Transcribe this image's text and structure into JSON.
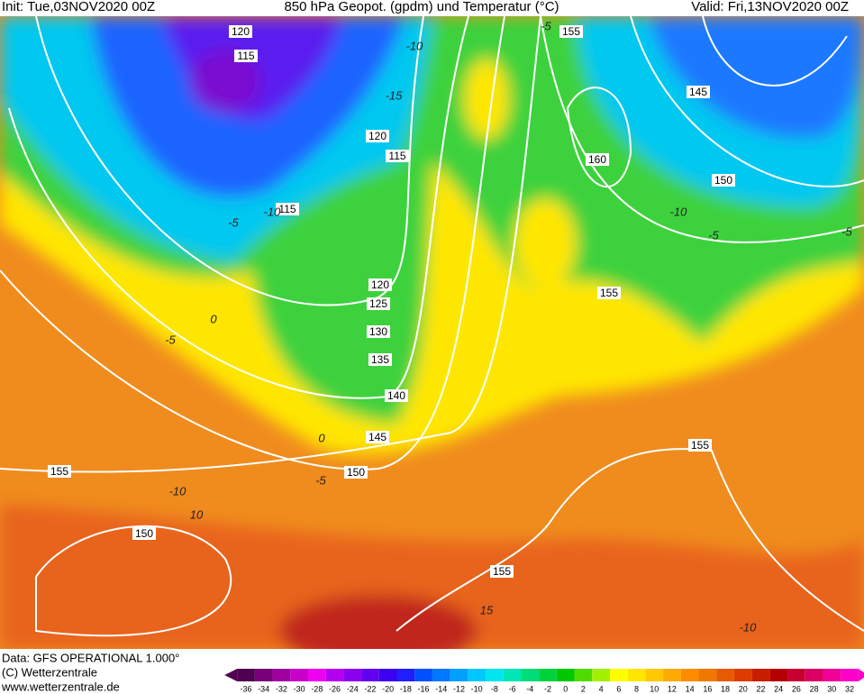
{
  "header": {
    "init": "Init: Tue,03NOV2020 00Z",
    "title": "850 hPa Geopot. (gpdm) und Temperatur (°C)",
    "valid": "Valid: Fri,13NOV2020 00Z"
  },
  "geopotential_labels": [
    120,
    115,
    155,
    145,
    120,
    115,
    160,
    150,
    115,
    155,
    120,
    125,
    130,
    135,
    140,
    145,
    150,
    155,
    150,
    155,
    155
  ],
  "temperature_labels": [
    -10,
    -5,
    -15,
    -10,
    -5,
    -10,
    -5,
    -5,
    0,
    -5,
    0,
    -5,
    -10,
    10,
    15,
    -10
  ],
  "footer": {
    "data": "Data: GFS OPERATIONAL 1.000°",
    "copyright": "(C) Wetterzentrale",
    "url": "www.wetterzentrale.de"
  },
  "colorbar": {
    "ticks": [
      -36,
      -34,
      -32,
      -30,
      -28,
      -26,
      -24,
      -22,
      -20,
      -18,
      -16,
      -14,
      -12,
      -10,
      -8,
      -6,
      -4,
      -2,
      0,
      2,
      4,
      6,
      8,
      10,
      12,
      14,
      16,
      18,
      20,
      22,
      24,
      26,
      28,
      30,
      32
    ],
    "colors": [
      "#500050",
      "#780078",
      "#a000a0",
      "#c800c8",
      "#f000f0",
      "#b400f0",
      "#8c00f0",
      "#6400f0",
      "#3c00f0",
      "#1e1eff",
      "#0050ff",
      "#0078ff",
      "#00a0ff",
      "#00c8ff",
      "#00e6f0",
      "#00e6b4",
      "#00dc78",
      "#00d23c",
      "#00c800",
      "#50dc00",
      "#a0f000",
      "#ffff00",
      "#ffe600",
      "#ffc800",
      "#ffaa00",
      "#ff8c00",
      "#f07800",
      "#e65a00",
      "#dc3c00",
      "#c81e00",
      "#b40000",
      "#c80032",
      "#dc0064",
      "#f00096",
      "#ff00c8"
    ]
  }
}
